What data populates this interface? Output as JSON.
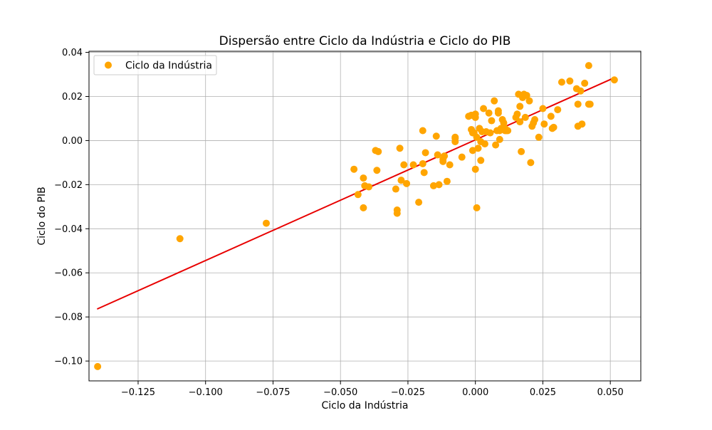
{
  "chart_data": {
    "type": "scatter",
    "title": "Dispersão entre Ciclo da Indústria e Ciclo do PIB",
    "xlabel": "Ciclo da Indústria",
    "ylabel": "Ciclo do PIB",
    "xlim": [
      -0.1432,
      0.0613
    ],
    "ylim": [
      -0.109,
      0.0405
    ],
    "xticks": [
      -0.125,
      -0.1,
      -0.075,
      -0.05,
      -0.025,
      0.0,
      0.025,
      0.05
    ],
    "xtick_labels": [
      "−0.125",
      "−0.100",
      "−0.075",
      "−0.050",
      "−0.025",
      "0.000",
      "0.025",
      "0.050"
    ],
    "yticks": [
      -0.1,
      -0.08,
      -0.06,
      -0.04,
      -0.02,
      0.0,
      0.02,
      0.04
    ],
    "ytick_labels": [
      "−0.10",
      "−0.08",
      "−0.06",
      "−0.04",
      "−0.02",
      "0.00",
      "0.02",
      "0.04"
    ],
    "grid": true,
    "legend_position": "upper-left",
    "series": [
      {
        "name": "Ciclo da Indústria",
        "color": "#ffa500",
        "kind": "scatter",
        "x": [
          -0.14,
          -0.1095,
          -0.0775,
          -0.045,
          -0.0435,
          -0.0415,
          -0.0415,
          -0.041,
          -0.0395,
          -0.037,
          -0.0365,
          -0.036,
          -0.0295,
          -0.029,
          -0.029,
          -0.028,
          -0.0275,
          -0.0265,
          -0.0255,
          -0.023,
          -0.021,
          -0.0195,
          -0.0195,
          -0.019,
          -0.0185,
          -0.0155,
          -0.0145,
          -0.014,
          -0.0135,
          -0.012,
          -0.012,
          -0.0115,
          -0.0105,
          -0.0095,
          -0.0075,
          -0.0075,
          -0.0075,
          -0.005,
          -0.0025,
          -0.0015,
          -0.0015,
          -0.001,
          -0.001,
          -0.0005,
          -0.0005,
          0.0,
          0.0,
          0.0,
          0.0005,
          0.0005,
          0.001,
          0.0015,
          0.002,
          0.002,
          0.0025,
          0.003,
          0.0035,
          0.004,
          0.005,
          0.0055,
          0.006,
          0.007,
          0.0075,
          0.008,
          0.0085,
          0.0085,
          0.009,
          0.009,
          0.0095,
          0.01,
          0.0105,
          0.011,
          0.011,
          0.0115,
          0.012,
          0.015,
          0.0155,
          0.016,
          0.0165,
          0.0165,
          0.017,
          0.0175,
          0.018,
          0.0185,
          0.019,
          0.02,
          0.0205,
          0.021,
          0.0215,
          0.022,
          0.0235,
          0.025,
          0.0255,
          0.028,
          0.0285,
          0.029,
          0.0305,
          0.032,
          0.035,
          0.0375,
          0.038,
          0.038,
          0.039,
          0.0395,
          0.0405,
          0.042,
          0.042,
          0.0425,
          0.0515
        ],
        "y": [
          -0.1025,
          -0.0445,
          -0.0375,
          -0.013,
          -0.0245,
          -0.0305,
          -0.017,
          -0.0205,
          -0.021,
          -0.0045,
          -0.0135,
          -0.005,
          -0.022,
          -0.0315,
          -0.033,
          -0.0035,
          -0.018,
          -0.011,
          -0.0195,
          -0.011,
          -0.028,
          -0.0105,
          0.0045,
          -0.0145,
          -0.0055,
          -0.0205,
          0.002,
          -0.0065,
          -0.02,
          -0.0085,
          -0.0095,
          -0.007,
          -0.0185,
          -0.011,
          0.001,
          -0.0005,
          0.0015,
          -0.0075,
          0.011,
          0.0115,
          0.005,
          -0.0045,
          0.0035,
          0.0115,
          0.0035,
          0.012,
          0.0105,
          -0.013,
          0.0015,
          -0.0305,
          -0.0035,
          0.0055,
          -0.0005,
          -0.009,
          0.004,
          0.0145,
          -0.0015,
          0.004,
          0.0125,
          0.0035,
          0.009,
          0.018,
          -0.002,
          0.0045,
          0.0125,
          0.0135,
          0.0005,
          0.0045,
          0.0055,
          0.0095,
          0.008,
          0.0045,
          0.0055,
          0.0045,
          0.0045,
          0.0105,
          0.012,
          0.021,
          0.0085,
          0.0155,
          -0.005,
          0.0195,
          0.021,
          0.0105,
          0.0205,
          0.018,
          -0.01,
          0.0065,
          0.008,
          0.0095,
          0.0015,
          0.0145,
          0.0075,
          0.011,
          0.0055,
          0.006,
          0.014,
          0.0265,
          0.027,
          0.0235,
          0.0165,
          0.0065,
          0.0225,
          0.0075,
          0.026,
          0.034,
          0.0165,
          0.0165,
          0.0275
        ]
      },
      {
        "name": "",
        "color": "#e80000",
        "kind": "line",
        "x": [
          -0.14,
          0.0515
        ],
        "y": [
          -0.0763,
          0.0285
        ]
      }
    ]
  }
}
